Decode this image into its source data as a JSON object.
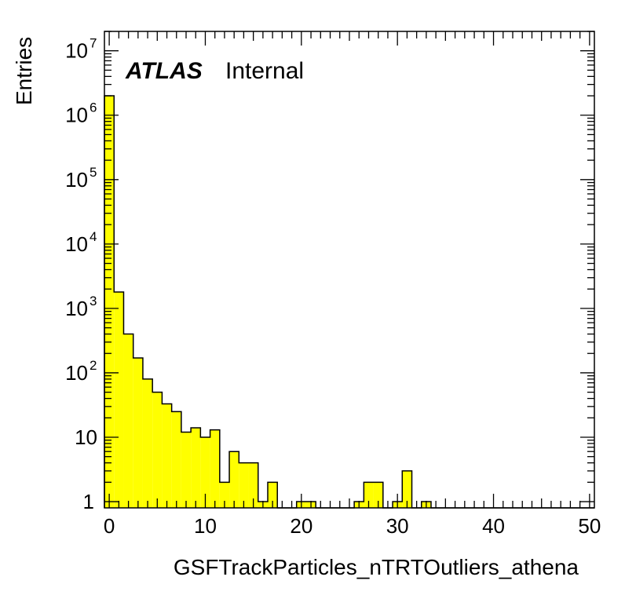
{
  "chart_data": {
    "type": "bar",
    "subtype": "histogram",
    "xlabel": "GSFTrackParticles_nTRTOutliers_athena",
    "ylabel": "Entries",
    "label_bold": "ATLAS",
    "label_normal": "Internal",
    "xlim": [
      -0.5,
      50.5
    ],
    "ylim": [
      0.8,
      20000000
    ],
    "y_scale": "log",
    "x_ticks": [
      0,
      10,
      20,
      30,
      40,
      50
    ],
    "x_tick_labels": [
      "0",
      "10",
      "20",
      "30",
      "40",
      "50"
    ],
    "y_ticks": [
      {
        "value": 1,
        "base": "1",
        "exp": ""
      },
      {
        "value": 10,
        "base": "10",
        "exp": ""
      },
      {
        "value": 100,
        "base": "10",
        "exp": "2"
      },
      {
        "value": 1000,
        "base": "10",
        "exp": "3"
      },
      {
        "value": 10000,
        "base": "10",
        "exp": "4"
      },
      {
        "value": 100000,
        "base": "10",
        "exp": "5"
      },
      {
        "value": 1000000,
        "base": "10",
        "exp": "6"
      },
      {
        "value": 10000000,
        "base": "10",
        "exp": "7"
      }
    ],
    "bin_edges_start": -0.5,
    "bin_width": 1,
    "values": [
      2000000,
      1800,
      400,
      170,
      80,
      50,
      33,
      25,
      12,
      14,
      10,
      13,
      2,
      6,
      4,
      4,
      1,
      2,
      0,
      0,
      1,
      1,
      0,
      0,
      0,
      0,
      1,
      2,
      2,
      0,
      1,
      3,
      0,
      1,
      0,
      0,
      0,
      0,
      0,
      0,
      0,
      0,
      0,
      0,
      0,
      0,
      0,
      0,
      0,
      0,
      0
    ],
    "fill_color": "#ffff00",
    "line_color": "#000000",
    "grid": false,
    "legend": "none"
  }
}
